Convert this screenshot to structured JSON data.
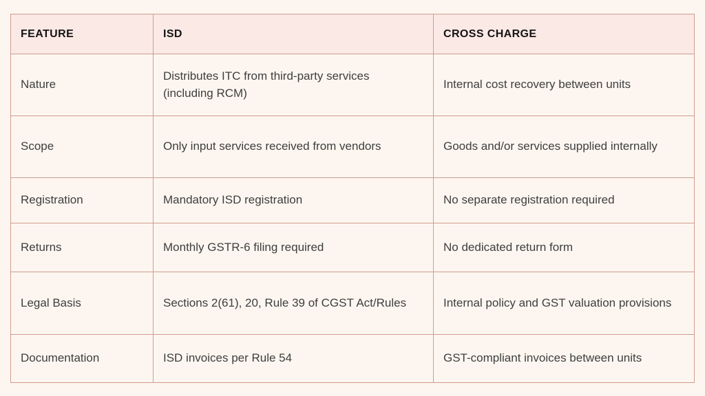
{
  "chart_data": {
    "type": "table",
    "columns": [
      "FEATURE",
      "ISD",
      "CROSS CHARGE"
    ],
    "rows": [
      [
        "Nature",
        "Distributes ITC from third-party services (including RCM)",
        "Internal cost recovery between units"
      ],
      [
        "Scope",
        "Only input services received from vendors",
        "Goods and/or services supplied internally"
      ],
      [
        "Registration",
        "Mandatory ISD registration",
        "No separate registration required"
      ],
      [
        "Returns",
        "Monthly GSTR-6 filing required",
        "No dedicated return form"
      ],
      [
        "Legal Basis",
        "Sections 2(61), 20, Rule 39 of CGST Act/Rules",
        "Internal policy and GST valuation provisions"
      ],
      [
        "Documentation",
        "ISD invoices per Rule 54",
        "GST-compliant invoices between units"
      ]
    ],
    "layout_hints": {
      "header_row": true,
      "grid": true
    }
  },
  "colors": {
    "page_background": "#fdf6f0",
    "header_background": "#fbe9e6",
    "cell_background": "#fdf6f0",
    "border": "#d09b8c",
    "header_text": "#141414",
    "body_text": "#3e3e3e"
  }
}
